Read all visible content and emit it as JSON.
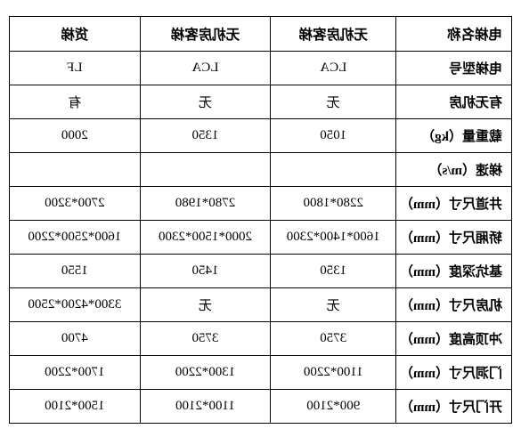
{
  "table": {
    "columns": [
      "电梯名称",
      "无机房客梯",
      "无机房客梯",
      "货梯"
    ],
    "rows": [
      {
        "label": "电梯型号",
        "cells": [
          "LCA",
          "LCA",
          "LF"
        ]
      },
      {
        "label": "有无机房",
        "cells": [
          "无",
          "无",
          "有"
        ]
      },
      {
        "label": "载重量（kg）",
        "cells": [
          "1050",
          "1350",
          "2000"
        ]
      },
      {
        "label": "梯速（m/s）",
        "cells": [
          "",
          "",
          ""
        ]
      },
      {
        "label": "井道尺寸（mm）",
        "cells": [
          "2280*1800",
          "2780*1980",
          "2700*3200"
        ]
      },
      {
        "label": "轿厢尺寸（mm）",
        "cells": [
          "1600*1400*2300",
          "2000*1500*2300",
          "1600*2500*2200"
        ]
      },
      {
        "label": "基坑深度（mm）",
        "cells": [
          "1350",
          "1450",
          "1550"
        ]
      },
      {
        "label": "机房尺寸（mm）",
        "cells": [
          "无",
          "无",
          "3300*4200*2500"
        ]
      },
      {
        "label": "冲顶高度（mm）",
        "cells": [
          "3750",
          "3750",
          "4700"
        ]
      },
      {
        "label": "门洞尺寸（mm）",
        "cells": [
          "1100*2200",
          "1300*2200",
          "1700*2200"
        ]
      },
      {
        "label": "开门尺寸（mm）",
        "cells": [
          "900*2100",
          "1100*2100",
          "1500*2100"
        ]
      }
    ],
    "border_color": "#000000",
    "background_color": "#ffffff",
    "header_fontsize": 15.5,
    "cell_fontsize": 15,
    "mirrored": true
  }
}
